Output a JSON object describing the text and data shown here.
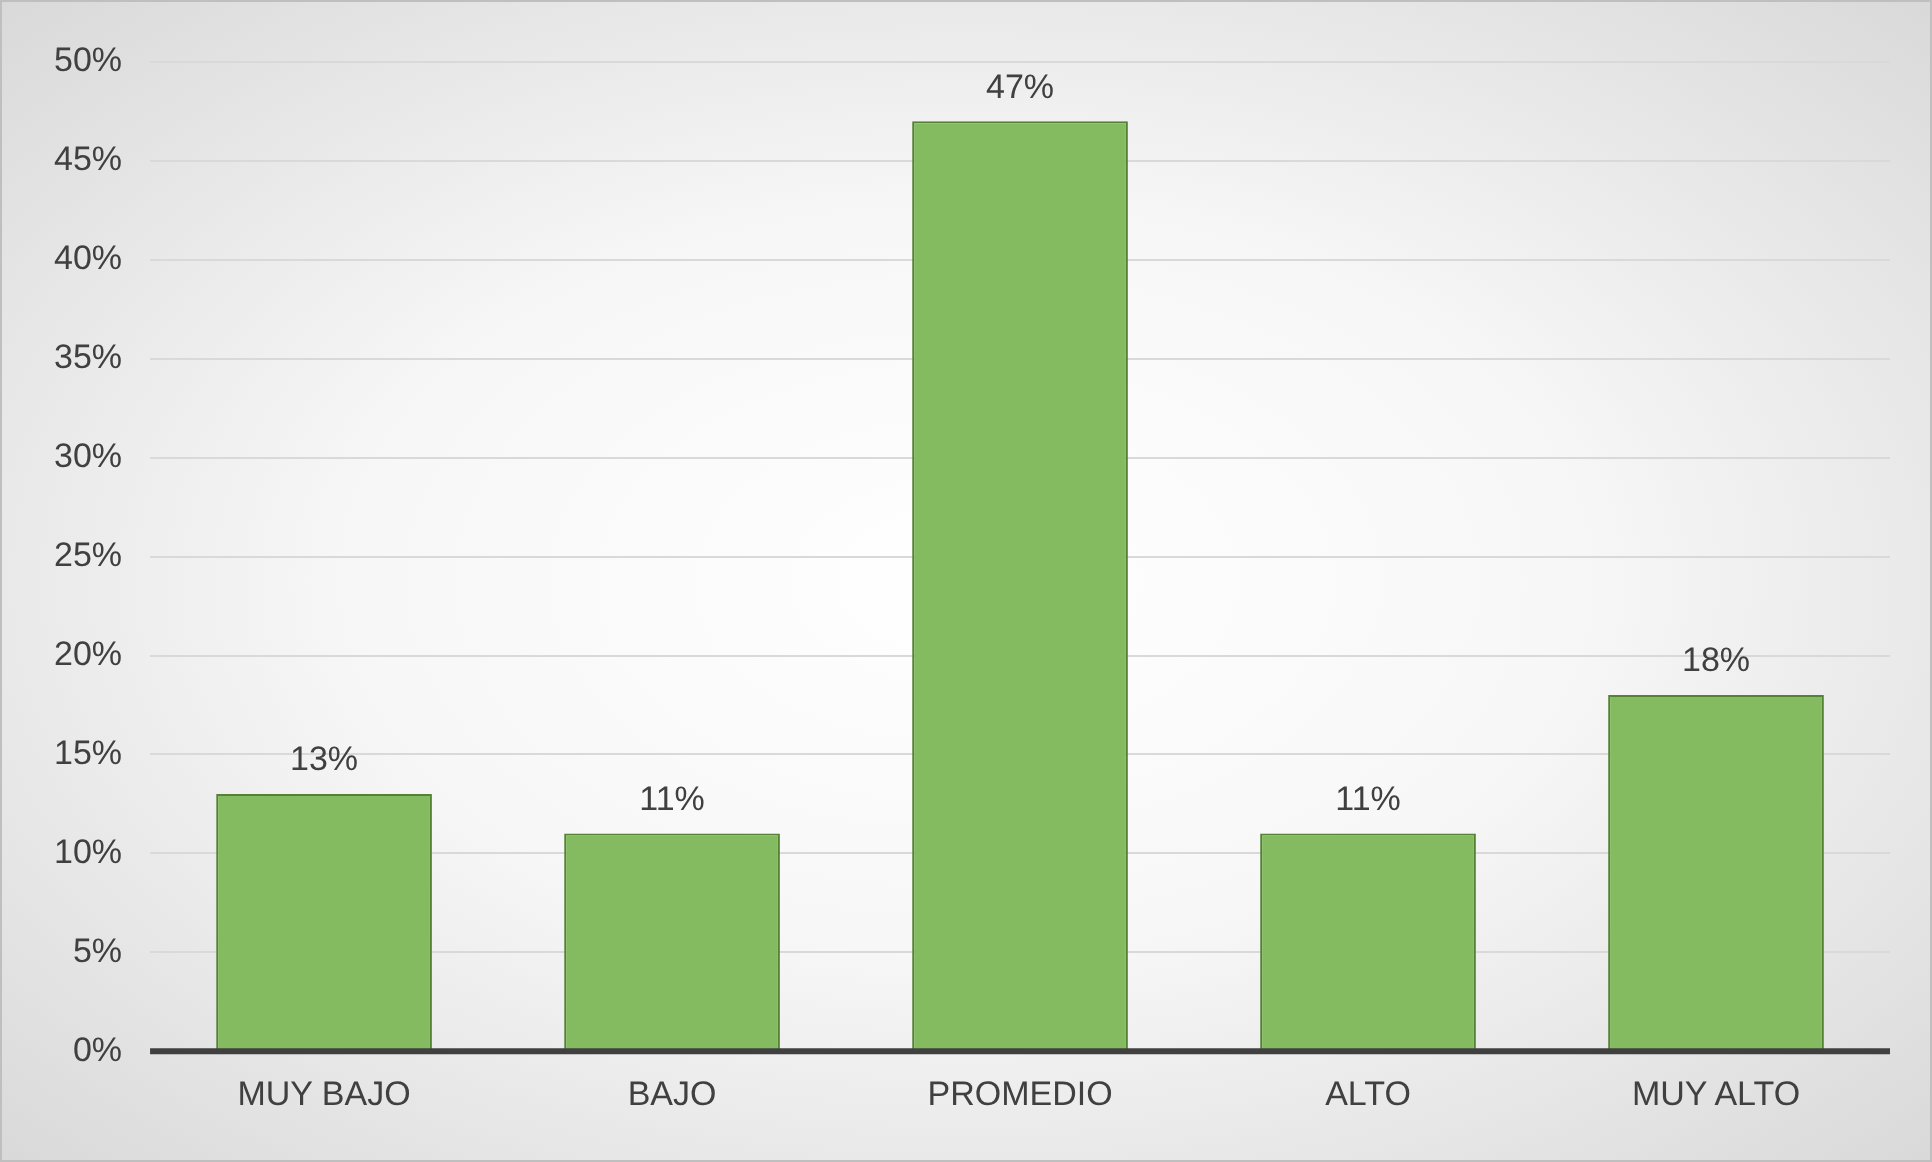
{
  "chart_data": {
    "type": "bar",
    "categories": [
      "MUY BAJO",
      "BAJO",
      "PROMEDIO",
      "ALTO",
      "MUY ALTO"
    ],
    "values": [
      13,
      11,
      47,
      11,
      18
    ],
    "value_labels": [
      "13%",
      "11%",
      "47%",
      "11%",
      "18%"
    ],
    "color": "#84bb60",
    "ylim": [
      0,
      50
    ],
    "yticks": [
      {
        "value": 0,
        "label": "0%"
      },
      {
        "value": 5,
        "label": "5%"
      },
      {
        "value": 10,
        "label": "10%"
      },
      {
        "value": 15,
        "label": "15%"
      },
      {
        "value": 20,
        "label": "20%"
      },
      {
        "value": 25,
        "label": "25%"
      },
      {
        "value": 30,
        "label": "30%"
      },
      {
        "value": 35,
        "label": "35%"
      },
      {
        "value": 40,
        "label": "40%"
      },
      {
        "value": 45,
        "label": "45%"
      },
      {
        "value": 50,
        "label": "50%"
      }
    ],
    "grid": "y",
    "legend": false
  }
}
